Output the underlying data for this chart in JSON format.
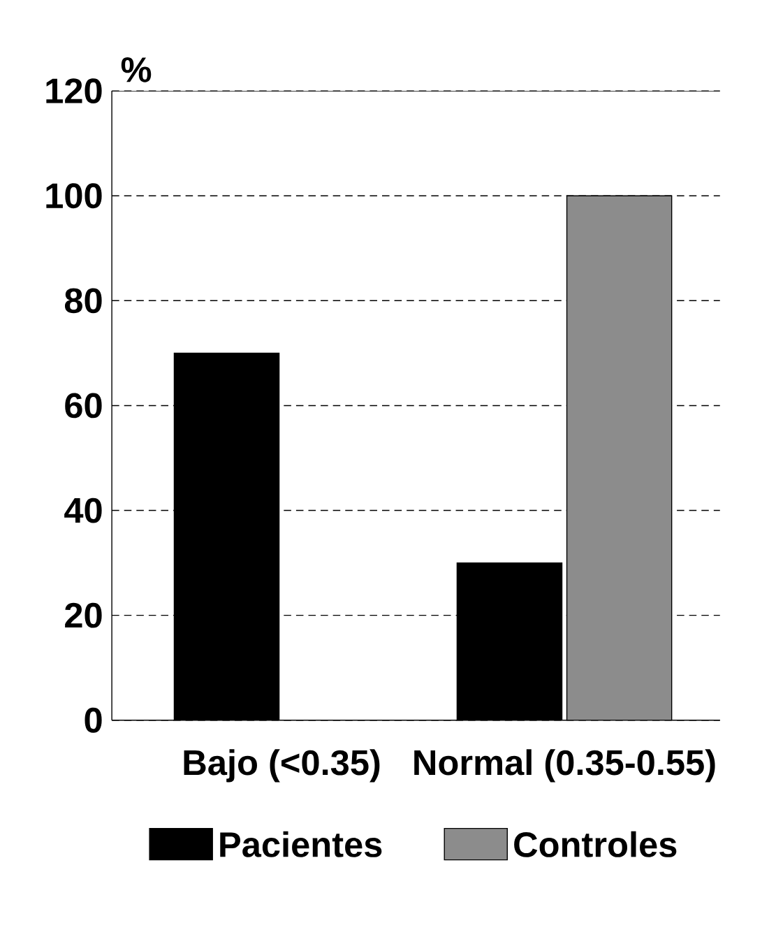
{
  "chart_data": {
    "type": "bar",
    "ylabel": "%",
    "categories": [
      "Bajo (<0.35)",
      "Normal (0.35-0.55)"
    ],
    "series": [
      {
        "name": "Pacientes",
        "color": "#000000",
        "values": [
          70,
          30
        ]
      },
      {
        "name": "Controles",
        "color": "#8c8c8c",
        "values": [
          0,
          100
        ]
      }
    ],
    "ylim": [
      0,
      120
    ],
    "yticks": [
      0,
      20,
      40,
      60,
      80,
      100,
      120
    ],
    "grid": "y",
    "legend": "bottom"
  }
}
